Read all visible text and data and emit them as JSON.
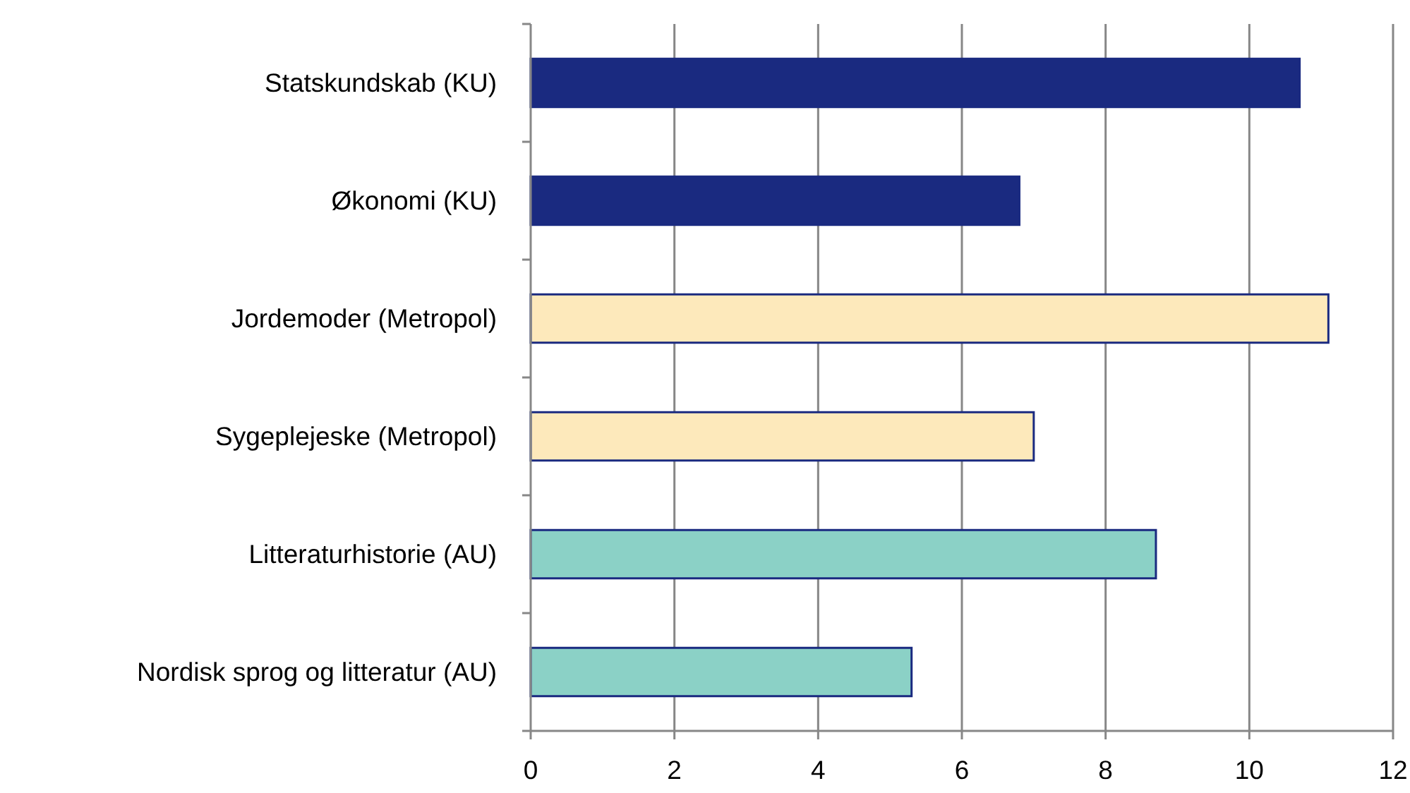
{
  "chart_data": {
    "type": "bar",
    "orientation": "horizontal",
    "categories": [
      "Statskundskab (KU)",
      "Økonomi (KU)",
      "Jordemoder (Metropol)",
      "Sygeplejeske (Metropol)",
      "Litteraturhistorie (AU)",
      "Nordisk sprog og litteratur (AU)"
    ],
    "values": [
      10.7,
      6.8,
      11.1,
      7.0,
      8.7,
      5.3
    ],
    "colors": [
      "#1a2a80",
      "#1a2a80",
      "#fde9bb",
      "#fde9bb",
      "#8bd1c6",
      "#8bd1c6"
    ],
    "xlim": [
      0,
      12
    ],
    "xticks": [
      0,
      2,
      4,
      6,
      8,
      10,
      12
    ],
    "grid": "x"
  }
}
